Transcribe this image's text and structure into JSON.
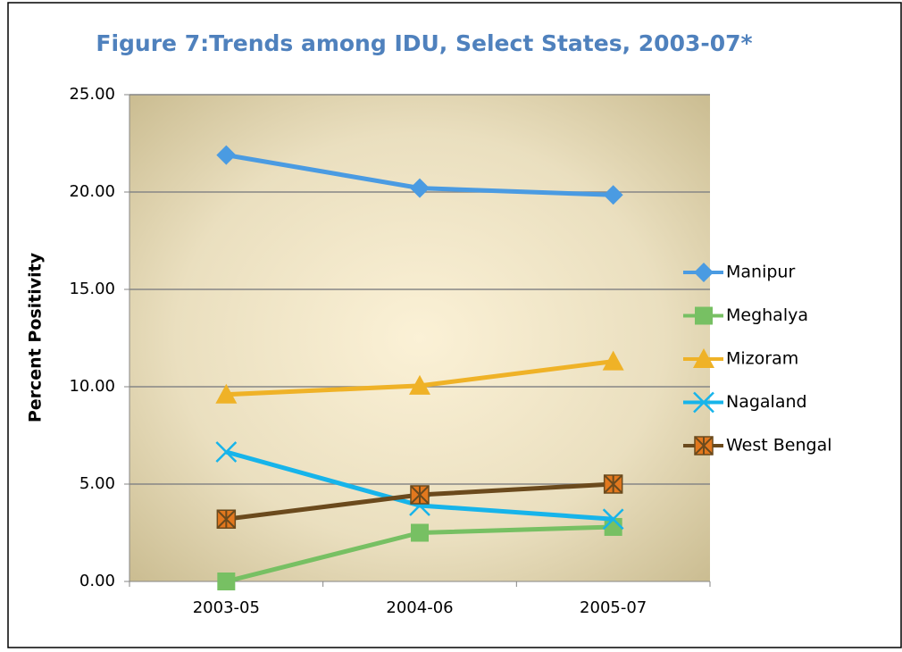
{
  "chart_data": {
    "type": "line",
    "title": "Figure 7:Trends among IDU, Select States, 2003-07*",
    "y_label": "Percent Positivity",
    "categories": [
      "2003-05",
      "2004-06",
      "2005-07"
    ],
    "series": [
      {
        "name": "Manipur",
        "color": "#4a9be2",
        "marker": "diamond",
        "values": [
          21.9,
          20.2,
          19.85
        ]
      },
      {
        "name": "Meghalya",
        "color": "#77c063",
        "marker": "square",
        "values": [
          0.0,
          2.5,
          2.8
        ]
      },
      {
        "name": "Mizoram",
        "color": "#efb227",
        "marker": "triangle",
        "values": [
          9.6,
          10.05,
          11.3
        ]
      },
      {
        "name": "Nagaland",
        "color": "#17b4ea",
        "marker": "x",
        "values": [
          6.65,
          3.9,
          3.2
        ]
      },
      {
        "name": "West Bengal",
        "color": "#6b4a1d",
        "marker": "star-square",
        "values": [
          3.2,
          4.45,
          5.0
        ]
      }
    ],
    "ylim": [
      0,
      25
    ],
    "yticks": [
      {
        "value": 0,
        "label": "0.00"
      },
      {
        "value": 5,
        "label": "5.00"
      },
      {
        "value": 10,
        "label": "10.00"
      },
      {
        "value": 15,
        "label": "15.00"
      },
      {
        "value": 20,
        "label": "20.00"
      },
      {
        "value": 25,
        "label": "25.00"
      }
    ],
    "grid": true,
    "legend": "right"
  }
}
